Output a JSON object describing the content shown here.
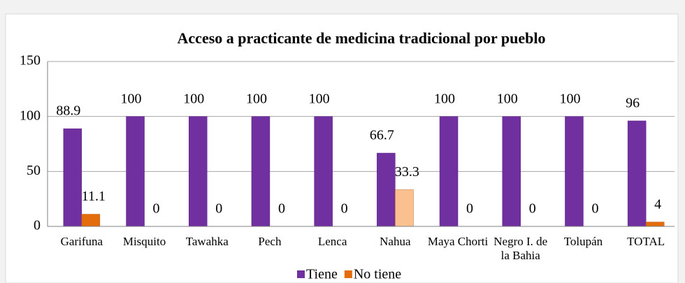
{
  "chart_data": {
    "type": "bar",
    "title": "Acceso a practicante de medicina tradicional por pueblo",
    "categories": [
      "Garifuna",
      "Misquito",
      "Tawahka",
      "Pech",
      "Lenca",
      "Nahua",
      "Maya Chorti",
      "Negro I. de la Bahia",
      "Tolupán",
      "TOTAL"
    ],
    "series": [
      {
        "name": "Tiene",
        "color": "#7030a0",
        "values": [
          88.9,
          100,
          100,
          100,
          100,
          66.7,
          100,
          100,
          100,
          96
        ]
      },
      {
        "name": "No tiene",
        "color": "#e46c0a",
        "colors": [
          "#e46c0a",
          "#e46c0a",
          "#e46c0a",
          "#e46c0a",
          "#e46c0a",
          "#fac090",
          "#e46c0a",
          "#e46c0a",
          "#e46c0a",
          "#e46c0a"
        ],
        "values": [
          11.1,
          0,
          0,
          0,
          0,
          33.3,
          0,
          0,
          0,
          4
        ]
      }
    ],
    "ylim": [
      0,
      150
    ],
    "yticks": [
      0,
      50,
      100,
      150
    ],
    "grid": true,
    "legend": "bottom"
  }
}
